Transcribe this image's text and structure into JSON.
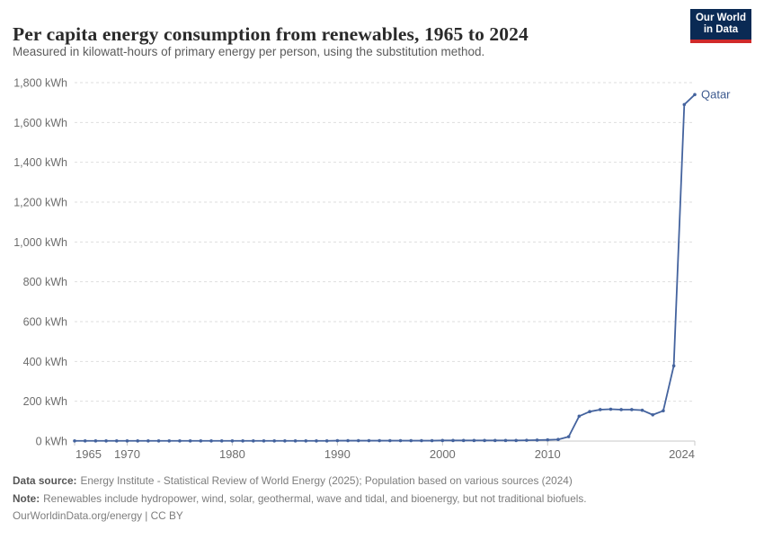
{
  "header": {
    "title": "Per capita energy consumption from renewables, 1965 to 2024",
    "subtitle": "Measured in kilowatt-hours of primary energy per person, using the substitution method."
  },
  "logo": {
    "line1": "Our World",
    "line2": "in Data"
  },
  "colors": {
    "line": "#44639e",
    "series_label": "#3d5a8f",
    "grid": "#dedede",
    "axis": "#c9c9c9",
    "tick_text": "#6d6d6d",
    "logo_bg": "#0a2a54",
    "logo_accent": "#d02a2a"
  },
  "chart_data": {
    "type": "line",
    "title": "Per capita energy consumption from renewables, 1965 to 2024",
    "subtitle": "Measured in kilowatt-hours of primary energy per person, using the substitution method.",
    "unit": "kWh",
    "ylabel": "kWh",
    "ylim": [
      0,
      1800
    ],
    "ytick_step": 200,
    "xticks": [
      1965,
      1970,
      1980,
      1990,
      2000,
      2010,
      2024
    ],
    "grid": "horizontal dashed",
    "legend_position": "end-of-line label",
    "x": [
      1965,
      1966,
      1967,
      1968,
      1969,
      1970,
      1971,
      1972,
      1973,
      1974,
      1975,
      1976,
      1977,
      1978,
      1979,
      1980,
      1981,
      1982,
      1983,
      1984,
      1985,
      1986,
      1987,
      1988,
      1989,
      1990,
      1991,
      1992,
      1993,
      1994,
      1995,
      1996,
      1997,
      1998,
      1999,
      2000,
      2001,
      2002,
      2003,
      2004,
      2005,
      2006,
      2007,
      2008,
      2009,
      2010,
      2011,
      2012,
      2013,
      2014,
      2015,
      2016,
      2017,
      2018,
      2019,
      2020,
      2021,
      2022,
      2023,
      2024
    ],
    "series": [
      {
        "name": "Qatar",
        "color": "#44639e",
        "values": [
          1,
          1,
          1,
          1,
          1,
          1,
          1,
          1,
          1,
          1,
          1,
          1,
          1,
          1,
          1,
          1,
          1,
          1,
          1,
          1,
          1,
          1,
          1,
          1,
          1,
          2,
          2,
          2,
          2,
          2,
          2,
          2,
          2,
          2,
          2,
          3,
          3,
          3,
          3,
          3,
          3,
          3,
          3,
          4,
          5,
          6,
          8,
          22,
          125,
          148,
          158,
          160,
          158,
          158,
          155,
          132,
          152,
          378,
          1690,
          1740
        ]
      }
    ]
  },
  "footer": {
    "source_label": "Data source:",
    "source_text": "Energy Institute - Statistical Review of World Energy (2025); Population based on various sources (2024)",
    "note_label": "Note:",
    "note_text": "Renewables include hydropower, wind, solar, geothermal, wave and tidal, and bioenergy, but not traditional biofuels.",
    "license": "OurWorldinData.org/energy | CC BY"
  }
}
